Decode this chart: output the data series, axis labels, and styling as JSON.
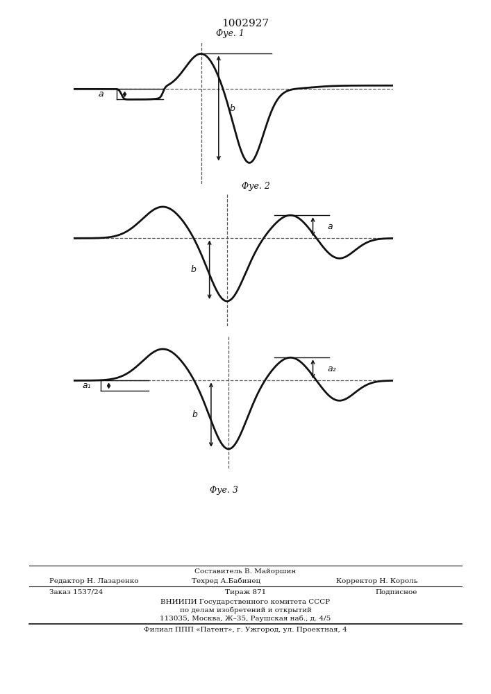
{
  "title": "1002927",
  "title_fontsize": 11,
  "fig1_label": "Φуе. 1",
  "fig2_label": "Φуе. 2",
  "fig3_label": "Φуе. 3",
  "bg_color": "#ffffff",
  "line_color": "#111111",
  "dashed_color": "#555555",
  "footer": {
    "sestavitel": "Составитель В. Майоршин",
    "redaktor": "Редактор Н. Лазаренко",
    "tekhred": "Техред А.Бабинец",
    "korrektor": "Корректор Н. Король",
    "zakaz": "Заказ 1537/24",
    "tirazh": "Тираж 871",
    "podpisnoe": "Подписное",
    "vniipи": "ВНИИПИ Государственного комитета СССР",
    "dela": "по делам изобретений и открытий",
    "addr": "113035, Москва, Ж–35, Раушская наб., д. 4/5",
    "filial": "Филиал ППП «Патент», г. Ужгород, ул. Проектная, 4"
  }
}
